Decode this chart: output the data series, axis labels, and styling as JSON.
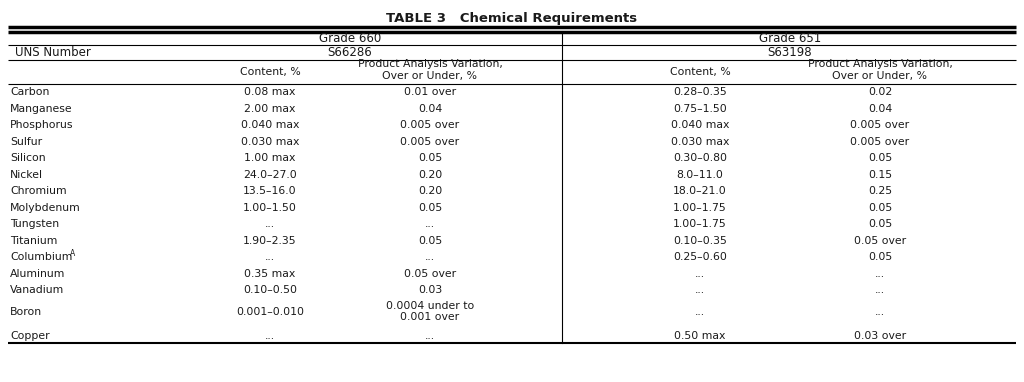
{
  "title": "TABLE 3   Chemical Requirements",
  "rows": [
    [
      "Carbon",
      "0.08 max",
      "0.01 over",
      "0.28–0.35",
      "0.02"
    ],
    [
      "Manganese",
      "2.00 max",
      "0.04",
      "0.75–1.50",
      "0.04"
    ],
    [
      "Phosphorus",
      "0.040 max",
      "0.005 over",
      "0.040 max",
      "0.005 over"
    ],
    [
      "Sulfur",
      "0.030 max",
      "0.005 over",
      "0.030 max",
      "0.005 over"
    ],
    [
      "Silicon",
      "1.00 max",
      "0.05",
      "0.30–0.80",
      "0.05"
    ],
    [
      "Nickel",
      "24.0–27.0",
      "0.20",
      "8.0–11.0",
      "0.15"
    ],
    [
      "Chromium",
      "13.5–16.0",
      "0.20",
      "18.0–21.0",
      "0.25"
    ],
    [
      "Molybdenum",
      "1.00–1.50",
      "0.05",
      "1.00–1.75",
      "0.05"
    ],
    [
      "Tungsten",
      "...",
      "...",
      "1.00–1.75",
      "0.05"
    ],
    [
      "Titanium",
      "1.90–2.35",
      "0.05",
      "0.10–0.35",
      "0.05 over"
    ],
    [
      "ColumbiumA",
      "...",
      "...",
      "0.25–0.60",
      "0.05"
    ],
    [
      "Aluminum",
      "0.35 max",
      "0.05 over",
      "...",
      "..."
    ],
    [
      "Vanadium",
      "0.10–0.50",
      "0.03",
      "...",
      "..."
    ],
    [
      "Boron",
      "0.001–0.010",
      "0.0004 under to\n0.001 over",
      "...",
      "..."
    ],
    [
      "Copper",
      "...",
      "...",
      "0.50 max",
      "0.03 over"
    ]
  ],
  "background_color": "#ffffff",
  "text_color": "#1a1a1a"
}
